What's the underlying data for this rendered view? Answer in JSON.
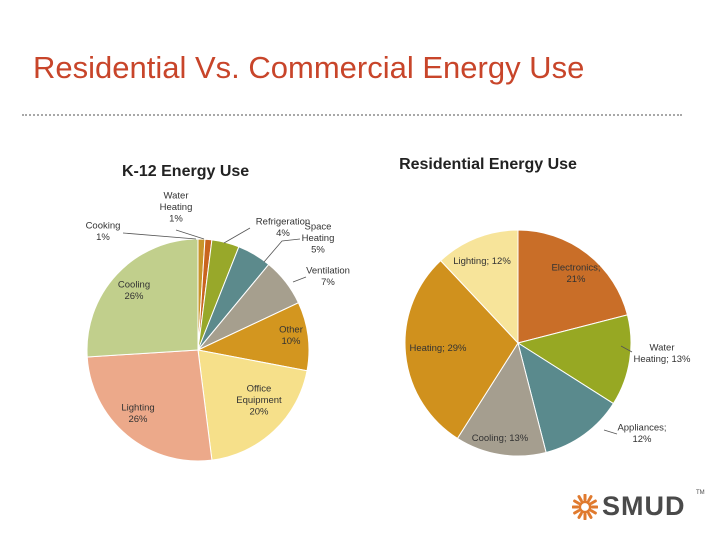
{
  "page": {
    "title": "Residential Vs. Commercial Energy Use"
  },
  "chart_data": [
    {
      "type": "pie",
      "title": "K-12 Energy Use",
      "slices": [
        {
          "label": "Cooking",
          "value": 1,
          "color": "#c8952a",
          "text": [
            "Cooking",
            "1%"
          ]
        },
        {
          "label": "Water Heating",
          "value": 1,
          "color": "#c9641e",
          "text": [
            "Water",
            "Heating",
            "1%"
          ]
        },
        {
          "label": "Refrigeration",
          "value": 4,
          "color": "#98a82a",
          "text": [
            "Refrigeration",
            "4%"
          ]
        },
        {
          "label": "Space Heating",
          "value": 5,
          "color": "#5c8a8c",
          "text": [
            "Space",
            "Heating",
            "5%"
          ]
        },
        {
          "label": "Ventilation",
          "value": 7,
          "color": "#a69f8e",
          "text": [
            "Ventilation",
            "7%"
          ]
        },
        {
          "label": "Other",
          "value": 10,
          "color": "#d3961f",
          "text": [
            "Other",
            "10%"
          ]
        },
        {
          "label": "Office Equipment",
          "value": 20,
          "color": "#f6e08a",
          "text": [
            "Office",
            "Equipment",
            "20%"
          ]
        },
        {
          "label": "Lighting",
          "value": 26,
          "color": "#eca98a",
          "text": [
            "Lighting",
            "26%"
          ]
        },
        {
          "label": "Cooling",
          "value": 26,
          "color": "#c1cf8c",
          "text": [
            "Cooling",
            "26%"
          ]
        }
      ]
    },
    {
      "type": "pie",
      "title": "Residential Energy Use",
      "slices": [
        {
          "label": "Electronics",
          "value": 21,
          "color": "#c96e28",
          "text": [
            "Electronics;",
            "21%"
          ]
        },
        {
          "label": "Water Heating",
          "value": 13,
          "color": "#97a823",
          "text": [
            "Water",
            "Heating; 13%"
          ]
        },
        {
          "label": "Appliances",
          "value": 12,
          "color": "#5a8a8d",
          "text": [
            "Appliances;",
            "12%"
          ]
        },
        {
          "label": "Cooling",
          "value": 13,
          "color": "#a59e8f",
          "text": [
            "Cooling; 13%"
          ]
        },
        {
          "label": "Heating",
          "value": 29,
          "color": "#d0911d",
          "text": [
            "Heating; 29%"
          ]
        },
        {
          "label": "Lighting",
          "value": 12,
          "color": "#f7e49a",
          "text": [
            "Lighting; 12%"
          ]
        }
      ]
    }
  ],
  "logo": {
    "text": "SMUD",
    "tm": "TM",
    "color": "#e07a2e"
  }
}
